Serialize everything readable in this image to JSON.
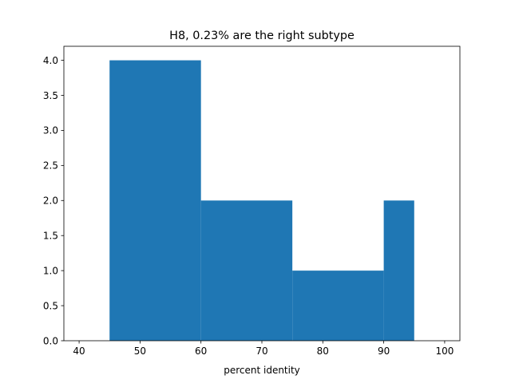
{
  "chart_data": {
    "type": "bar",
    "title": "H8, 0.23% are the right subtype",
    "xlabel": "percent identity",
    "ylabel": "",
    "bins": [
      {
        "x0": 45,
        "x1": 60,
        "count": 4
      },
      {
        "x0": 60,
        "x1": 75,
        "count": 2
      },
      {
        "x0": 75,
        "x1": 90,
        "count": 1
      },
      {
        "x0": 90,
        "x1": 95,
        "count": 2
      }
    ],
    "xlim": [
      37.5,
      102.5
    ],
    "ylim": [
      0,
      4.2
    ],
    "xticks": [
      40,
      50,
      60,
      70,
      80,
      90,
      100
    ],
    "yticks": [
      0.0,
      0.5,
      1.0,
      1.5,
      2.0,
      2.5,
      3.0,
      3.5,
      4.0
    ],
    "ytick_labels": [
      "0.0",
      "0.5",
      "1.0",
      "1.5",
      "2.0",
      "2.5",
      "3.0",
      "3.5",
      "4.0"
    ],
    "bar_color": "#1f77b4",
    "grid": false
  }
}
